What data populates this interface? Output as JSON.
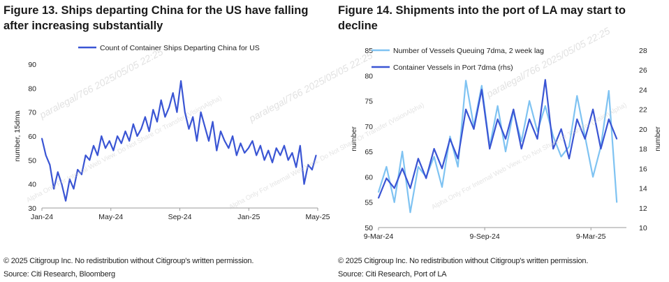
{
  "figures": {
    "left": {
      "title": "Figure 13. Ships departing China for the US have falling after increasing substantially",
      "copyright": "© 2025 Citigroup Inc. No redistribution without Citigroup's written permission.",
      "source": "Source: Citi Research, Bloomberg"
    },
    "right": {
      "title": "Figure 14. Shipments into the port of LA may start to decline",
      "copyright": "© 2025 Citigroup Inc. No redistribution without Citigroup's written permission.",
      "source": "Source: Citi Research, Port of LA"
    }
  },
  "colors": {
    "dark_series": "#3a55d4",
    "light_series": "#7fc3f2",
    "axis": "#9a9a9a",
    "watermark": "#c9c9c9"
  },
  "watermark": {
    "lines": [
      "paralegal/766 2025/05/05 22:25",
      "Alpha Only For Internal Web View. Do Not Share Or Transfer (VisionAlpha)"
    ]
  },
  "chart_data": [
    {
      "type": "line",
      "title": "",
      "ylabel": "number, 15dma",
      "xlabel": "",
      "ylim": [
        30,
        90
      ],
      "yticks": [
        30,
        40,
        50,
        60,
        70,
        80,
        90
      ],
      "xticks": [
        "Jan-24",
        "May-24",
        "Sep-24",
        "Jan-25",
        "May-25"
      ],
      "xrange": [
        "2024-01-01",
        "2025-05-01"
      ],
      "legend_position": "top",
      "grid": false,
      "series": [
        {
          "name": "Count of Container Ships Departing China for US",
          "color": "#3a55d4",
          "x": [
            "2024-01-01",
            "2024-01-08",
            "2024-01-15",
            "2024-01-22",
            "2024-01-29",
            "2024-02-05",
            "2024-02-12",
            "2024-02-19",
            "2024-02-26",
            "2024-03-04",
            "2024-03-11",
            "2024-03-18",
            "2024-03-25",
            "2024-04-01",
            "2024-04-08",
            "2024-04-15",
            "2024-04-22",
            "2024-04-29",
            "2024-05-06",
            "2024-05-13",
            "2024-05-20",
            "2024-05-27",
            "2024-06-03",
            "2024-06-10",
            "2024-06-17",
            "2024-06-24",
            "2024-07-01",
            "2024-07-08",
            "2024-07-15",
            "2024-07-22",
            "2024-07-29",
            "2024-08-05",
            "2024-08-12",
            "2024-08-19",
            "2024-08-26",
            "2024-09-02",
            "2024-09-09",
            "2024-09-16",
            "2024-09-23",
            "2024-09-30",
            "2024-10-07",
            "2024-10-14",
            "2024-10-21",
            "2024-10-28",
            "2024-11-04",
            "2024-11-11",
            "2024-11-18",
            "2024-11-25",
            "2024-12-02",
            "2024-12-09",
            "2024-12-16",
            "2024-12-23",
            "2024-12-30",
            "2025-01-06",
            "2025-01-13",
            "2025-01-20",
            "2025-01-27",
            "2025-02-03",
            "2025-02-10",
            "2025-02-17",
            "2025-02-24",
            "2025-03-03",
            "2025-03-10",
            "2025-03-17",
            "2025-03-24",
            "2025-03-31",
            "2025-04-07",
            "2025-04-14",
            "2025-04-21",
            "2025-04-28"
          ],
          "values": [
            59,
            52,
            48,
            38,
            45,
            40,
            33,
            42,
            38,
            46,
            44,
            52,
            50,
            56,
            52,
            60,
            55,
            58,
            54,
            60,
            57,
            62,
            58,
            65,
            60,
            63,
            68,
            62,
            71,
            66,
            75,
            68,
            72,
            78,
            70,
            83,
            70,
            63,
            68,
            58,
            70,
            64,
            58,
            66,
            54,
            62,
            58,
            55,
            60,
            52,
            57,
            53,
            55,
            58,
            52,
            56,
            50,
            54,
            49,
            55,
            52,
            56,
            50,
            53,
            47,
            56,
            40,
            48,
            46,
            52
          ]
        }
      ]
    },
    {
      "type": "line",
      "title": "",
      "ylabel": "number",
      "y2label": "number",
      "xlabel": "",
      "ylim": [
        50,
        85
      ],
      "yticks": [
        50,
        55,
        60,
        65,
        70,
        75,
        80,
        85
      ],
      "y2lim": [
        10,
        28
      ],
      "y2ticks": [
        10,
        12,
        14,
        16,
        18,
        20,
        22,
        24,
        26,
        28
      ],
      "xticks": [
        "9-Mar-24",
        "9-Sep-24",
        "9-Mar-25"
      ],
      "xrange": [
        "2024-03-09",
        "2025-05-20"
      ],
      "legend_position": "top-left",
      "grid": false,
      "series": [
        {
          "name": "Number of Vessels Queuing 7dma, 2 week lag",
          "color": "#7fc3f2",
          "axis": "left",
          "x": [
            "2024-03-09",
            "2024-03-23",
            "2024-04-06",
            "2024-04-20",
            "2024-05-04",
            "2024-05-18",
            "2024-06-01",
            "2024-06-15",
            "2024-06-29",
            "2024-07-13",
            "2024-07-27",
            "2024-08-10",
            "2024-08-24",
            "2024-09-07",
            "2024-09-21",
            "2024-10-05",
            "2024-10-19",
            "2024-11-02",
            "2024-11-16",
            "2024-11-30",
            "2024-12-14",
            "2024-12-28",
            "2025-01-11",
            "2025-01-25",
            "2025-02-08",
            "2025-02-22",
            "2025-03-08",
            "2025-03-22",
            "2025-04-05",
            "2025-04-19",
            "2025-05-03"
          ],
          "values": [
            57,
            62,
            55,
            65,
            53,
            62,
            60,
            64,
            58,
            68,
            62,
            79,
            70,
            78,
            66,
            74,
            65,
            73,
            67,
            75,
            69,
            74,
            68,
            64,
            66,
            76,
            68,
            60,
            66,
            77,
            55
          ]
        },
        {
          "name": "Container Vessels in Port 7dma (rhs)",
          "color": "#3a55d4",
          "axis": "right",
          "x": [
            "2024-03-09",
            "2024-03-23",
            "2024-04-06",
            "2024-04-20",
            "2024-05-04",
            "2024-05-18",
            "2024-06-01",
            "2024-06-15",
            "2024-06-29",
            "2024-07-13",
            "2024-07-27",
            "2024-08-10",
            "2024-08-24",
            "2024-09-07",
            "2024-09-21",
            "2024-10-05",
            "2024-10-19",
            "2024-11-02",
            "2024-11-16",
            "2024-11-30",
            "2024-12-14",
            "2024-12-28",
            "2025-01-11",
            "2025-01-25",
            "2025-02-08",
            "2025-02-22",
            "2025-03-08",
            "2025-03-22",
            "2025-04-05",
            "2025-04-19",
            "2025-05-03"
          ],
          "values": [
            13,
            15,
            14,
            16,
            14,
            17,
            15,
            18,
            16,
            19,
            17,
            22,
            20,
            24,
            18,
            21,
            19,
            22,
            18,
            21,
            19,
            25,
            18,
            20,
            17,
            21,
            19,
            22,
            18,
            21,
            19
          ]
        }
      ]
    }
  ]
}
